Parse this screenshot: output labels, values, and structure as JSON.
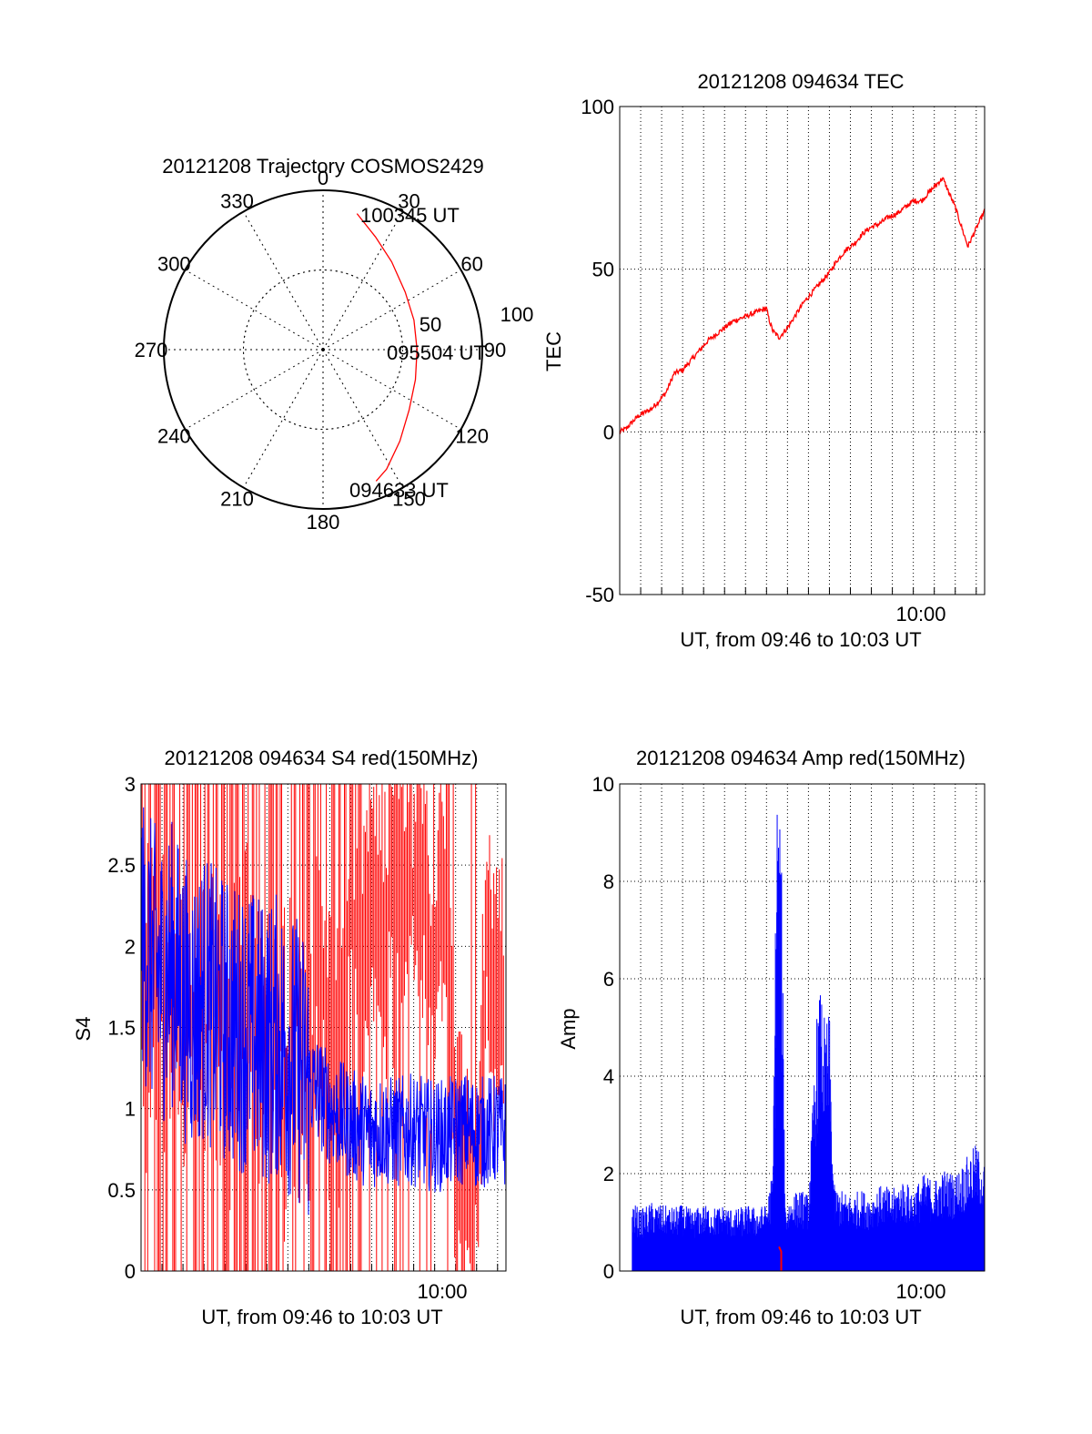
{
  "colors": {
    "red": "#ff0000",
    "blue": "#0000ff",
    "axis": "#000000",
    "grid": "#000000"
  },
  "chart_data": [
    {
      "type": "polar",
      "title": "20121208 Trajectory COSMOS2429",
      "angle_labels": [
        "0",
        "30",
        "60",
        "90",
        "120",
        "150",
        "180",
        "210",
        "240",
        "270",
        "300",
        "330"
      ],
      "radius_labels": [
        "50",
        "100"
      ],
      "rlim": [
        0,
        100
      ],
      "grid": true,
      "annotations": [
        "100345 UT",
        "095504 UT",
        "094633 UT"
      ],
      "trajectory": [
        {
          "az": 14,
          "r": 88
        },
        {
          "az": 25,
          "r": 78
        },
        {
          "az": 38,
          "r": 70
        },
        {
          "az": 55,
          "r": 63
        },
        {
          "az": 72,
          "r": 60
        },
        {
          "az": 90,
          "r": 59
        },
        {
          "az": 108,
          "r": 61
        },
        {
          "az": 125,
          "r": 66
        },
        {
          "az": 140,
          "r": 75
        },
        {
          "az": 152,
          "r": 85
        },
        {
          "az": 158,
          "r": 89
        }
      ]
    },
    {
      "type": "line",
      "title": "20121208 094634 TEC",
      "xlabel": "UT, from 09:46 to 10:03 UT",
      "ylabel": "TEC",
      "xlim": [
        0,
        17.4
      ],
      "ylim": [
        -50,
        100
      ],
      "yticks": [
        "-50",
        "0",
        "50",
        "100"
      ],
      "xtick_label": "10:00",
      "xtick_value": 14,
      "grid": true,
      "series": [
        {
          "x": [
            0,
            0.3,
            0.6,
            0.9,
            1.2,
            1.5,
            1.8,
            2.2,
            2.6,
            3.0,
            3.4,
            3.8,
            4.2,
            4.6,
            5.0,
            5.4,
            5.8,
            6.2,
            6.6,
            7.0,
            7.1,
            7.3,
            7.6,
            8.0,
            8.4,
            8.8,
            9.2,
            9.6,
            10.0,
            10.4,
            10.8,
            11.2,
            11.6,
            12.0,
            12.4,
            12.8,
            13.2,
            13.6,
            14.0,
            14.4,
            14.8,
            15.1,
            15.4,
            16.0,
            16.6,
            17.4
          ],
          "y": [
            0,
            1,
            3,
            5,
            6,
            7,
            9,
            12,
            18,
            19,
            22,
            25,
            28,
            30,
            32,
            34,
            35,
            36,
            37,
            38,
            35,
            31,
            29,
            32,
            36,
            40,
            43,
            46,
            49,
            53,
            56,
            58,
            61,
            63,
            64,
            66,
            67,
            69,
            71,
            71,
            74,
            76,
            78,
            69,
            57,
            68
          ]
        }
      ]
    },
    {
      "type": "line",
      "title": "20121208 094634 S4 red(150MHz)",
      "xlabel": "UT, from 09:46 to 10:03 UT",
      "ylabel": "S4",
      "xlim": [
        0,
        17.4
      ],
      "ylim": [
        0,
        3
      ],
      "yticks": [
        "0",
        "0.5",
        "1",
        "1.5",
        "2",
        "2.5",
        "3"
      ],
      "xtick_label": "10:00",
      "xtick_value": 14,
      "grid": true,
      "series": [
        {
          "x": [
            0,
            0.5,
            1,
            1.5,
            2,
            2.5,
            3,
            3.5,
            4,
            4.5,
            5,
            5.5,
            6,
            6.5,
            7,
            7.5,
            8,
            8.5,
            9,
            9.5,
            10,
            10.5,
            11,
            11.5,
            12,
            12.5,
            13,
            13.5,
            14,
            14.5,
            15,
            15.5,
            16,
            16.5,
            17,
            17.4
          ],
          "y": [
            2.1,
            1.9,
            1.8,
            1.9,
            1.7,
            1.6,
            1.7,
            1.6,
            1.55,
            1.5,
            1.5,
            1.45,
            1.4,
            1.45,
            1.35,
            1.3,
            1.15,
            1.1,
            1.0,
            0.95,
            0.9,
            0.88,
            0.85,
            0.88,
            0.85,
            0.86,
            0.87,
            0.85,
            0.83,
            0.84,
            0.86,
            0.88,
            0.85,
            0.86,
            0.87,
            0.85
          ]
        },
        {
          "x": [
            0,
            0.5,
            1,
            1.5,
            2,
            2.5,
            3,
            3.5,
            4,
            4.5,
            5,
            5.5,
            6,
            6.5,
            7,
            7.5,
            8,
            8.5,
            9,
            9.5,
            10,
            10.5,
            11,
            11.5,
            12,
            12.5,
            13,
            13.5,
            14,
            14.5,
            15,
            15.5,
            16,
            16.5,
            17,
            17.4
          ],
          "y": [
            1.8,
            1.7,
            1.6,
            1.9,
            1.5,
            1.7,
            1.4,
            1.6,
            1.3,
            1.5,
            1.7,
            1.2,
            1.6,
            1.4,
            1.3,
            1.6,
            1.2,
            1.8,
            1.4,
            1.5,
            2.1,
            1.8,
            2.2,
            2.0,
            2.4,
            2.2,
            2.5,
            2.1,
            1.9,
            2.3,
            0.6,
            0.55,
            0.5,
            1.9,
            1.7,
            1.6
          ]
        }
      ]
    },
    {
      "type": "line",
      "title": "20121208 094634 Amp red(150MHz)",
      "xlabel": "UT, from 09:46 to 10:03 UT",
      "ylabel": "Amp",
      "xlim": [
        0,
        17.4
      ],
      "ylim": [
        0,
        10
      ],
      "yticks": [
        "0",
        "2",
        "4",
        "6",
        "8",
        "10"
      ],
      "xtick_label": "10:00",
      "xtick_value": 14,
      "grid": true,
      "series": [
        {
          "x": [
            0,
            0.5,
            1,
            1.5,
            2,
            2.5,
            3,
            3.5,
            4,
            4.5,
            5,
            5.5,
            6,
            6.5,
            7,
            7.3,
            7.5,
            7.7,
            7.9,
            8.2,
            8.6,
            9.0,
            9.4,
            9.6,
            9.8,
            10.0,
            10.2,
            10.5,
            11,
            11.5,
            12,
            12.5,
            13,
            13.5,
            14,
            14.5,
            15,
            15.5,
            16,
            16.5,
            17,
            17.4
          ],
          "y": [
            1.3,
            1.4,
            1.2,
            1.35,
            1.3,
            1.25,
            1.3,
            1.2,
            1.3,
            1.25,
            1.3,
            1.2,
            1.3,
            1.25,
            1.3,
            2.0,
            9.8,
            8.5,
            1.3,
            1.5,
            1.6,
            1.5,
            5.0,
            5.6,
            4.8,
            5.1,
            1.7,
            1.6,
            1.5,
            1.6,
            1.5,
            1.7,
            1.6,
            1.8,
            1.6,
            1.9,
            1.8,
            2.0,
            1.9,
            2.2,
            2.5,
            2.1
          ]
        },
        {
          "x": [
            7.6,
            7.7
          ],
          "y": [
            0.5,
            0.4
          ]
        }
      ]
    }
  ]
}
